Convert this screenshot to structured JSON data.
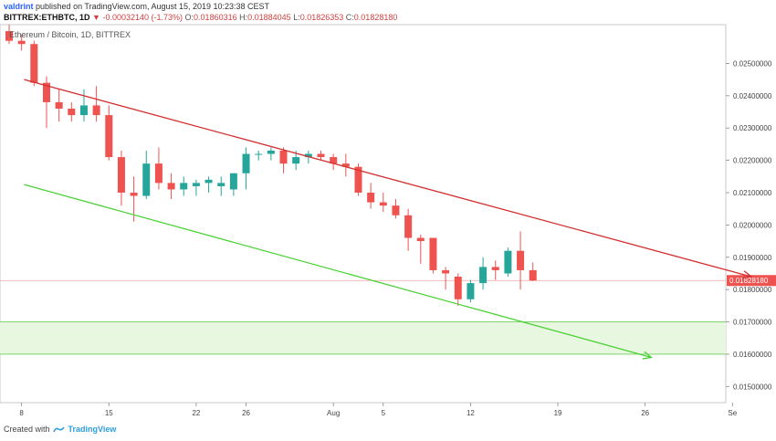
{
  "header": {
    "author": "valdrint",
    "published": "published on TradingView.com, August 15, 2019 10:23:38 CEST",
    "symbol": "BITTREX:ETHBTC, 1D",
    "change": "-0.00032140 (-1.73%)",
    "o_label": "O:",
    "o_value": "0.01860316",
    "h_label": "H:",
    "h_value": "0.01884045",
    "l_label": "L:",
    "l_value": "0.01826353",
    "c_label": "C:",
    "c_value": "0.01828180"
  },
  "chart_subtitle": "Ethereum / Bitcoin, 1D, BITTREX",
  "footer": {
    "created_with": "Created with",
    "brand": "TradingView"
  },
  "colors": {
    "up": "#26a69a",
    "down": "#ef5350",
    "resistance": "#d32f2f",
    "support": "#4cd137",
    "zone": "#e8f8e0"
  },
  "chart_data": {
    "type": "candlestick",
    "x_tick_labels": [
      "8",
      "15",
      "22",
      "26",
      "Aug",
      "5",
      "12",
      "19",
      "26",
      "Se"
    ],
    "y_tick_labels": [
      "0.02500000",
      "0.02400000",
      "0.02300000",
      "0.02200000",
      "0.02100000",
      "0.02000000",
      "0.01900000",
      "0.01800000",
      "0.01700000",
      "0.01600000",
      "0.01500000"
    ],
    "y_range": [
      0.0145,
      0.0262
    ],
    "last_price_label": "0.01828180",
    "zone": [
      0.016,
      0.017
    ],
    "candles": [
      {
        "o": 0.026,
        "h": 0.0262,
        "l": 0.0256,
        "c": 0.0257
      },
      {
        "o": 0.0257,
        "h": 0.0259,
        "l": 0.0254,
        "c": 0.0256
      },
      {
        "o": 0.0256,
        "h": 0.0257,
        "l": 0.0243,
        "c": 0.0244
      },
      {
        "o": 0.0244,
        "h": 0.0246,
        "l": 0.023,
        "c": 0.0238
      },
      {
        "o": 0.0238,
        "h": 0.0242,
        "l": 0.0232,
        "c": 0.0236
      },
      {
        "o": 0.0236,
        "h": 0.0238,
        "l": 0.0232,
        "c": 0.0234
      },
      {
        "o": 0.0234,
        "h": 0.0242,
        "l": 0.0232,
        "c": 0.0237
      },
      {
        "o": 0.0237,
        "h": 0.0243,
        "l": 0.0232,
        "c": 0.0234
      },
      {
        "o": 0.0234,
        "h": 0.0237,
        "l": 0.022,
        "c": 0.0221
      },
      {
        "o": 0.0221,
        "h": 0.0223,
        "l": 0.0206,
        "c": 0.021
      },
      {
        "o": 0.021,
        "h": 0.0215,
        "l": 0.0201,
        "c": 0.0209
      },
      {
        "o": 0.0209,
        "h": 0.0223,
        "l": 0.0208,
        "c": 0.0219
      },
      {
        "o": 0.0219,
        "h": 0.0224,
        "l": 0.0211,
        "c": 0.0213
      },
      {
        "o": 0.0213,
        "h": 0.0216,
        "l": 0.0208,
        "c": 0.0211
      },
      {
        "o": 0.0211,
        "h": 0.0215,
        "l": 0.0209,
        "c": 0.0213
      },
      {
        "o": 0.0212,
        "h": 0.0214,
        "l": 0.0209,
        "c": 0.0213
      },
      {
        "o": 0.0213,
        "h": 0.0215,
        "l": 0.021,
        "c": 0.0214
      },
      {
        "o": 0.0212,
        "h": 0.0215,
        "l": 0.0209,
        "c": 0.0213
      },
      {
        "o": 0.0211,
        "h": 0.0216,
        "l": 0.0209,
        "c": 0.0216
      },
      {
        "o": 0.0216,
        "h": 0.0224,
        "l": 0.0211,
        "c": 0.0222
      },
      {
        "o": 0.0222,
        "h": 0.0223,
        "l": 0.022,
        "c": 0.0222
      },
      {
        "o": 0.0222,
        "h": 0.0224,
        "l": 0.022,
        "c": 0.0223
      },
      {
        "o": 0.0223,
        "h": 0.0224,
        "l": 0.0216,
        "c": 0.0219
      },
      {
        "o": 0.0219,
        "h": 0.0223,
        "l": 0.0217,
        "c": 0.0221
      },
      {
        "o": 0.0221,
        "h": 0.0223,
        "l": 0.0219,
        "c": 0.0222
      },
      {
        "o": 0.0222,
        "h": 0.0223,
        "l": 0.022,
        "c": 0.0221
      },
      {
        "o": 0.0221,
        "h": 0.0222,
        "l": 0.0217,
        "c": 0.0219
      },
      {
        "o": 0.0219,
        "h": 0.0222,
        "l": 0.0215,
        "c": 0.0218
      },
      {
        "o": 0.0218,
        "h": 0.0219,
        "l": 0.0209,
        "c": 0.021
      },
      {
        "o": 0.021,
        "h": 0.0213,
        "l": 0.0205,
        "c": 0.0207
      },
      {
        "o": 0.0207,
        "h": 0.021,
        "l": 0.0204,
        "c": 0.0206
      },
      {
        "o": 0.0206,
        "h": 0.0208,
        "l": 0.0202,
        "c": 0.0203
      },
      {
        "o": 0.0203,
        "h": 0.0205,
        "l": 0.0192,
        "c": 0.0196
      },
      {
        "o": 0.0196,
        "h": 0.0197,
        "l": 0.0188,
        "c": 0.0195
      },
      {
        "o": 0.0196,
        "h": 0.0196,
        "l": 0.0185,
        "c": 0.0186
      },
      {
        "o": 0.0186,
        "h": 0.0187,
        "l": 0.018,
        "c": 0.0185
      },
      {
        "o": 0.0184,
        "h": 0.0185,
        "l": 0.0175,
        "c": 0.0177
      },
      {
        "o": 0.0177,
        "h": 0.0183,
        "l": 0.0176,
        "c": 0.0182
      },
      {
        "o": 0.0182,
        "h": 0.019,
        "l": 0.018,
        "c": 0.0187
      },
      {
        "o": 0.0187,
        "h": 0.0189,
        "l": 0.0183,
        "c": 0.0186
      },
      {
        "o": 0.0185,
        "h": 0.0193,
        "l": 0.0184,
        "c": 0.0192
      },
      {
        "o": 0.0192,
        "h": 0.0198,
        "l": 0.018,
        "c": 0.0186
      },
      {
        "o": 0.0186,
        "h": 0.01884,
        "l": 0.01826,
        "c": 0.01828
      }
    ],
    "trendlines": [
      {
        "name": "resistance",
        "points": [
          [
            1.2,
            0.0245
          ],
          [
            59.5,
            0.0184
          ]
        ],
        "arrow": true
      },
      {
        "name": "support",
        "points": [
          [
            1.2,
            0.02125
          ],
          [
            51.5,
            0.0159
          ]
        ],
        "arrow": true
      }
    ]
  }
}
